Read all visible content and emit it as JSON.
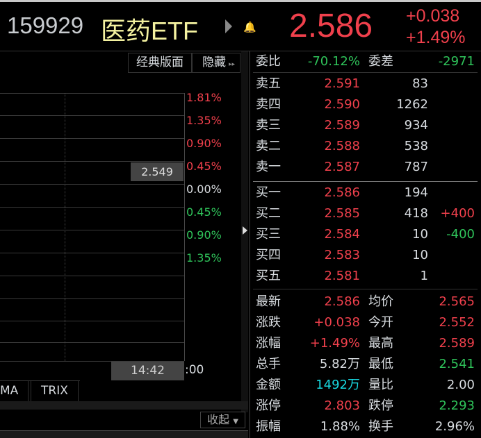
{
  "header": {
    "code": "159929",
    "name": "医药ETF",
    "price": "2.586",
    "change": "+0.038",
    "change_pct": "+1.49%"
  },
  "toolbar": {
    "classic": "经典版面",
    "hide": "隐藏"
  },
  "chart": {
    "pct_labels": [
      {
        "t": "1.81%",
        "c": "red"
      },
      {
        "t": "1.35%",
        "c": "red"
      },
      {
        "t": "0.90%",
        "c": "red"
      },
      {
        "t": "0.45%",
        "c": "red"
      },
      {
        "t": "0.00%",
        "c": "white"
      },
      {
        "t": "0.45%",
        "c": "green"
      },
      {
        "t": "0.90%",
        "c": "green"
      },
      {
        "t": "1.35%",
        "c": "green"
      }
    ],
    "cursor_price": "2.549",
    "cursor_time": "14:42",
    "end_time": ":00"
  },
  "tabs": [
    "MA",
    "TRIX"
  ],
  "collapse": "收起",
  "order": {
    "ratio_label": "委比",
    "ratio": "-70.12%",
    "diff_label": "委差",
    "diff": "-2971",
    "asks": [
      {
        "label": "卖五",
        "price": "2.591",
        "vol": "83"
      },
      {
        "label": "卖四",
        "price": "2.590",
        "vol": "1262"
      },
      {
        "label": "卖三",
        "price": "2.589",
        "vol": "934"
      },
      {
        "label": "卖二",
        "price": "2.588",
        "vol": "538"
      },
      {
        "label": "卖一",
        "price": "2.587",
        "vol": "787"
      }
    ],
    "bids": [
      {
        "label": "买一",
        "price": "2.586",
        "vol": "194",
        "delta": ""
      },
      {
        "label": "买二",
        "price": "2.585",
        "vol": "418",
        "delta": "+400"
      },
      {
        "label": "买三",
        "price": "2.584",
        "vol": "10",
        "delta": "-400"
      },
      {
        "label": "买四",
        "price": "2.583",
        "vol": "10",
        "delta": ""
      },
      {
        "label": "买五",
        "price": "2.581",
        "vol": "1",
        "delta": ""
      }
    ]
  },
  "stats": [
    {
      "l1": "最新",
      "v1": "2.586",
      "c1": "red",
      "l2": "均价",
      "v2": "2.565",
      "c2": "red"
    },
    {
      "l1": "涨跌",
      "v1": "+0.038",
      "c1": "red",
      "l2": "今开",
      "v2": "2.552",
      "c2": "red"
    },
    {
      "l1": "涨幅",
      "v1": "+1.49%",
      "c1": "red",
      "l2": "最高",
      "v2": "2.589",
      "c2": "red"
    },
    {
      "l1": "总手",
      "v1": "5.82万",
      "c1": "white",
      "l2": "最低",
      "v2": "2.541",
      "c2": "green"
    },
    {
      "l1": "金额",
      "v1": "1492万",
      "c1": "cyan",
      "l2": "量比",
      "v2": "2.00",
      "c2": "white"
    },
    {
      "l1": "涨停",
      "v1": "2.803",
      "c1": "red",
      "l2": "跌停",
      "v2": "2.293",
      "c2": "green"
    },
    {
      "l1": "振幅",
      "v1": "1.88%",
      "c1": "white",
      "l2": "换手",
      "v2": "2.96%",
      "c2": "white"
    }
  ],
  "colors": {
    "up": "#f0404c",
    "down": "#2fc35a",
    "amount": "#18d8e0",
    "name": "#f4f2a0"
  }
}
